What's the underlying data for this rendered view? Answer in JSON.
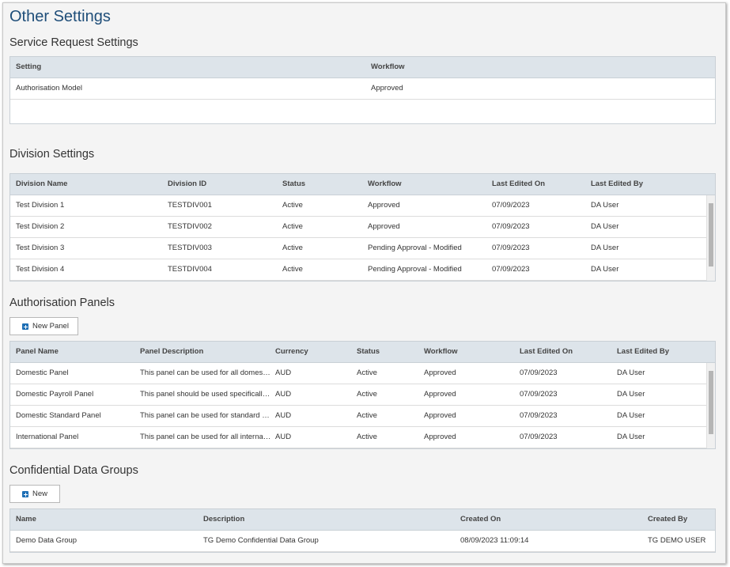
{
  "page": {
    "title": "Other Settings"
  },
  "service_request": {
    "title": "Service Request Settings",
    "table": {
      "headers": [
        "Setting",
        "Workflow"
      ],
      "rows": [
        [
          "Authorisation Model",
          "Approved"
        ]
      ]
    }
  },
  "division": {
    "title": "Division Settings",
    "table": {
      "headers": [
        "Division Name",
        "Division ID",
        "Status",
        "Workflow",
        "Last Edited On",
        "Last Edited By"
      ],
      "rows": [
        [
          "Test Division 1",
          "TESTDIV001",
          "Active",
          "Approved",
          "07/09/2023",
          "DA User"
        ],
        [
          "Test Division 2",
          "TESTDIV002",
          "Active",
          "Approved",
          "07/09/2023",
          "DA User"
        ],
        [
          "Test Division 3",
          "TESTDIV003",
          "Active",
          "Pending Approval - Modified",
          "07/09/2023",
          "DA User"
        ],
        [
          "Test Division 4",
          "TESTDIV004",
          "Active",
          "Pending Approval - Modified",
          "07/09/2023",
          "DA User"
        ]
      ]
    }
  },
  "panels": {
    "title": "Authorisation Panels",
    "button": "New Panel",
    "table": {
      "headers": [
        "Panel Name",
        "Panel Description",
        "Currency",
        "Status",
        "Workflow",
        "Last Edited On",
        "Last Edited By"
      ],
      "rows": [
        [
          "Domestic Panel",
          "This panel can be used for all domes…",
          "AUD",
          "Active",
          "Approved",
          "07/09/2023",
          "DA User"
        ],
        [
          "Domestic Payroll Panel",
          "This panel should be used specificall…",
          "AUD",
          "Active",
          "Approved",
          "07/09/2023",
          "DA User"
        ],
        [
          "Domestic Standard Panel",
          "This panel can be used for standard …",
          "AUD",
          "Active",
          "Approved",
          "07/09/2023",
          "DA User"
        ],
        [
          "International Panel",
          "This panel can be used for all interna…",
          "AUD",
          "Active",
          "Approved",
          "07/09/2023",
          "DA User"
        ]
      ]
    }
  },
  "data_groups": {
    "title": "Confidential Data Groups",
    "button": "New",
    "table": {
      "headers": [
        "Name",
        "Description",
        "Created On",
        "Created By"
      ],
      "rows": [
        [
          "Demo Data Group",
          "TG Demo Confidential Data Group",
          "08/09/2023 11:09:14",
          "TG DEMO USER"
        ]
      ]
    }
  }
}
